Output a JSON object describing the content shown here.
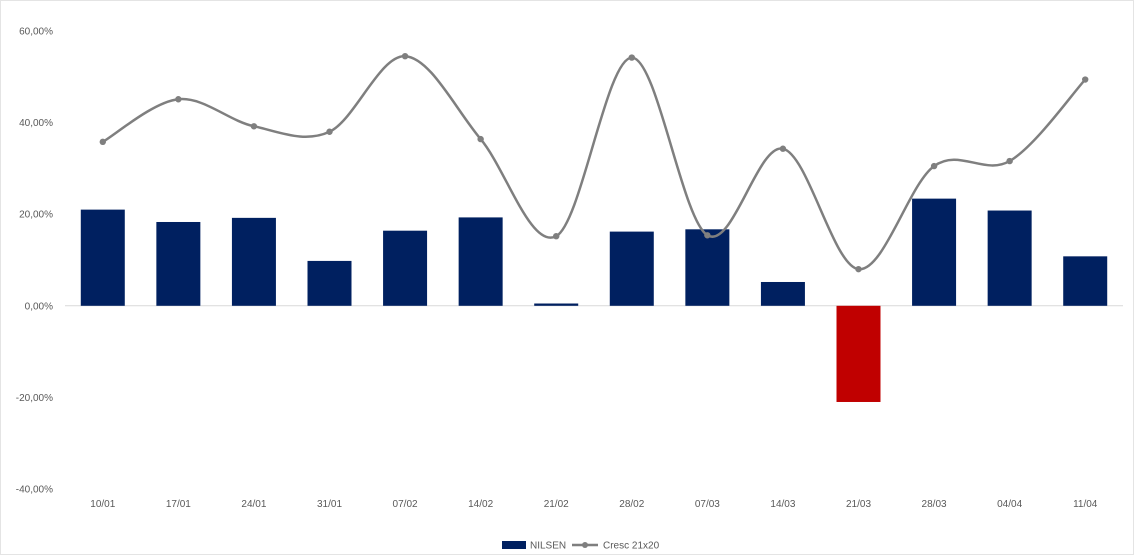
{
  "chart_data": {
    "type": "bar",
    "categories": [
      "10/01",
      "17/01",
      "24/01",
      "31/01",
      "07/02",
      "14/02",
      "21/02",
      "28/02",
      "07/03",
      "14/03",
      "21/03",
      "28/03",
      "04/04",
      "11/04"
    ],
    "series": [
      {
        "name": "NILSEN",
        "kind": "bar",
        "values": [
          21.0,
          18.3,
          19.2,
          9.8,
          16.4,
          19.3,
          0.5,
          16.2,
          16.7,
          5.2,
          -21.0,
          23.4,
          20.8,
          10.8
        ],
        "color": "#002060",
        "negative_color": "#c00000"
      },
      {
        "name": "Cresc 21x20",
        "kind": "line",
        "smooth": true,
        "values": [
          35.8,
          45.1,
          39.2,
          38.0,
          54.5,
          36.4,
          15.2,
          54.2,
          15.4,
          34.3,
          8.0,
          30.5,
          31.6,
          49.4
        ],
        "color": "#7f7f7f"
      }
    ],
    "ylim": [
      -40,
      60
    ],
    "yticks": [
      60,
      40,
      20,
      0,
      -20,
      -40
    ],
    "ytick_labels": [
      "60,00%",
      "40,00%",
      "20,00%",
      "0,00%",
      "-20,00%",
      "-40,00%"
    ],
    "grid": false,
    "legend": "bottom-center",
    "title": "",
    "xlabel": "",
    "ylabel": ""
  }
}
